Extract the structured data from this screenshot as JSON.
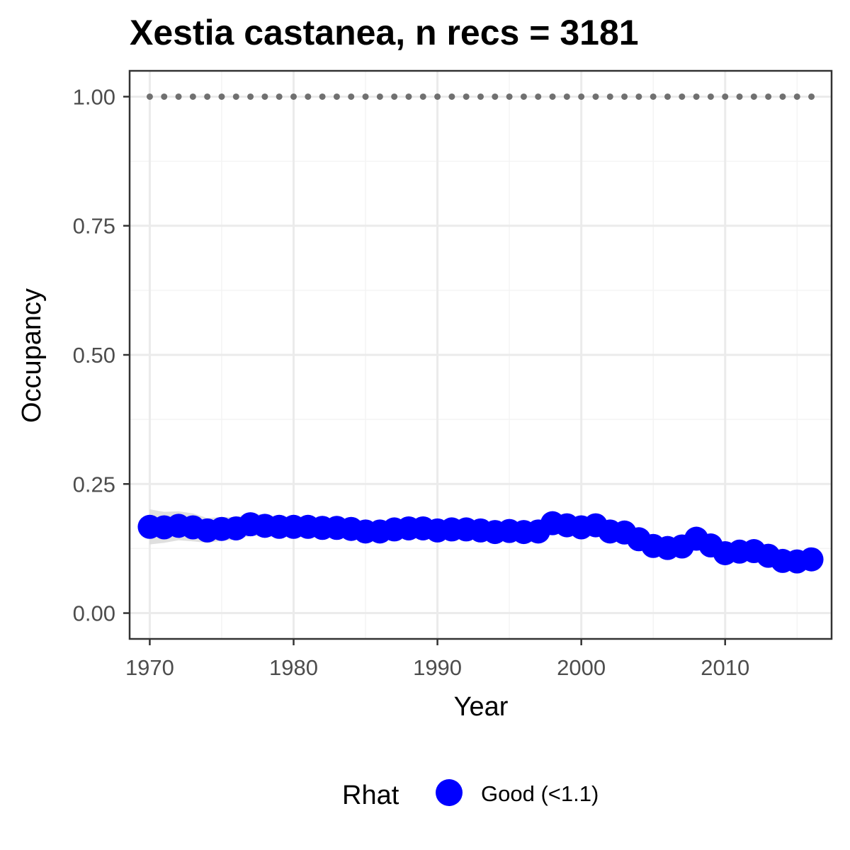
{
  "chart_data": {
    "type": "scatter",
    "title": "Xestia castanea, n recs = 3181",
    "xlabel": "Year",
    "ylabel": "Occupancy",
    "xlim": [
      1968.6,
      2017.4
    ],
    "ylim": [
      -0.05,
      1.05
    ],
    "x_ticks": [
      "1970",
      "1980",
      "1990",
      "2000",
      "2010"
    ],
    "y_ticks": [
      "0.00",
      "0.25",
      "0.50",
      "0.75",
      "1.00"
    ],
    "grid": true,
    "legend": {
      "position": "bottom",
      "title": "Rhat",
      "entries": [
        {
          "label": "Good (<1.1)",
          "color": "#0000ff"
        }
      ]
    },
    "series": [
      {
        "name": "Good (<1.1)",
        "color": "#0000ff",
        "x": [
          1970,
          1971,
          1972,
          1973,
          1974,
          1975,
          1976,
          1977,
          1978,
          1979,
          1980,
          1981,
          1982,
          1983,
          1984,
          1985,
          1986,
          1987,
          1988,
          1989,
          1990,
          1991,
          1992,
          1993,
          1994,
          1995,
          1996,
          1997,
          1998,
          1999,
          2000,
          2001,
          2002,
          2003,
          2004,
          2005,
          2006,
          2007,
          2008,
          2009,
          2010,
          2011,
          2012,
          2013,
          2014,
          2015,
          2016
        ],
        "y": [
          0.167,
          0.166,
          0.169,
          0.166,
          0.16,
          0.163,
          0.164,
          0.172,
          0.169,
          0.167,
          0.167,
          0.167,
          0.165,
          0.165,
          0.163,
          0.158,
          0.158,
          0.162,
          0.164,
          0.164,
          0.16,
          0.162,
          0.162,
          0.16,
          0.157,
          0.159,
          0.157,
          0.158,
          0.174,
          0.17,
          0.166,
          0.17,
          0.158,
          0.156,
          0.143,
          0.13,
          0.126,
          0.129,
          0.144,
          0.131,
          0.116,
          0.119,
          0.12,
          0.111,
          0.101,
          0.1,
          0.104
        ],
        "lower": [
          0.133,
          0.136,
          0.141,
          0.139,
          0.136,
          0.14,
          0.142,
          0.15,
          0.148,
          0.147,
          0.147,
          0.147,
          0.146,
          0.146,
          0.144,
          0.14,
          0.14,
          0.144,
          0.146,
          0.146,
          0.142,
          0.144,
          0.144,
          0.142,
          0.139,
          0.141,
          0.139,
          0.14,
          0.156,
          0.152,
          0.148,
          0.152,
          0.14,
          0.138,
          0.126,
          0.113,
          0.109,
          0.112,
          0.127,
          0.114,
          0.099,
          0.102,
          0.103,
          0.094,
          0.084,
          0.083,
          0.087
        ],
        "upper": [
          0.201,
          0.196,
          0.197,
          0.193,
          0.184,
          0.186,
          0.186,
          0.194,
          0.19,
          0.187,
          0.187,
          0.187,
          0.184,
          0.184,
          0.182,
          0.176,
          0.176,
          0.18,
          0.182,
          0.182,
          0.178,
          0.18,
          0.18,
          0.178,
          0.175,
          0.177,
          0.175,
          0.176,
          0.192,
          0.188,
          0.184,
          0.188,
          0.176,
          0.174,
          0.16,
          0.147,
          0.143,
          0.146,
          0.161,
          0.148,
          0.133,
          0.136,
          0.137,
          0.128,
          0.118,
          0.117,
          0.121
        ]
      },
      {
        "name": "",
        "color": "#707070",
        "x": [
          1970,
          1971,
          1972,
          1973,
          1974,
          1975,
          1976,
          1977,
          1978,
          1979,
          1980,
          1981,
          1982,
          1983,
          1984,
          1985,
          1986,
          1987,
          1988,
          1989,
          1990,
          1991,
          1992,
          1993,
          1994,
          1995,
          1996,
          1997,
          1998,
          1999,
          2000,
          2001,
          2002,
          2003,
          2004,
          2005,
          2006,
          2007,
          2008,
          2009,
          2010,
          2011,
          2012,
          2013,
          2014,
          2015,
          2016
        ],
        "y": [
          1,
          1,
          1,
          1,
          1,
          1,
          1,
          1,
          1,
          1,
          1,
          1,
          1,
          1,
          1,
          1,
          1,
          1,
          1,
          1,
          1,
          1,
          1,
          1,
          1,
          1,
          1,
          1,
          1,
          1,
          1,
          1,
          1,
          1,
          1,
          1,
          1,
          1,
          1,
          1,
          1,
          1,
          1,
          1,
          1,
          1,
          1
        ]
      }
    ]
  },
  "colors": {
    "panel_border": "#333333",
    "grid_major": "#ebebeb",
    "grid_minor": "#f4f4f4",
    "ribbon": "#d9d9d9",
    "tick": "#333333"
  }
}
